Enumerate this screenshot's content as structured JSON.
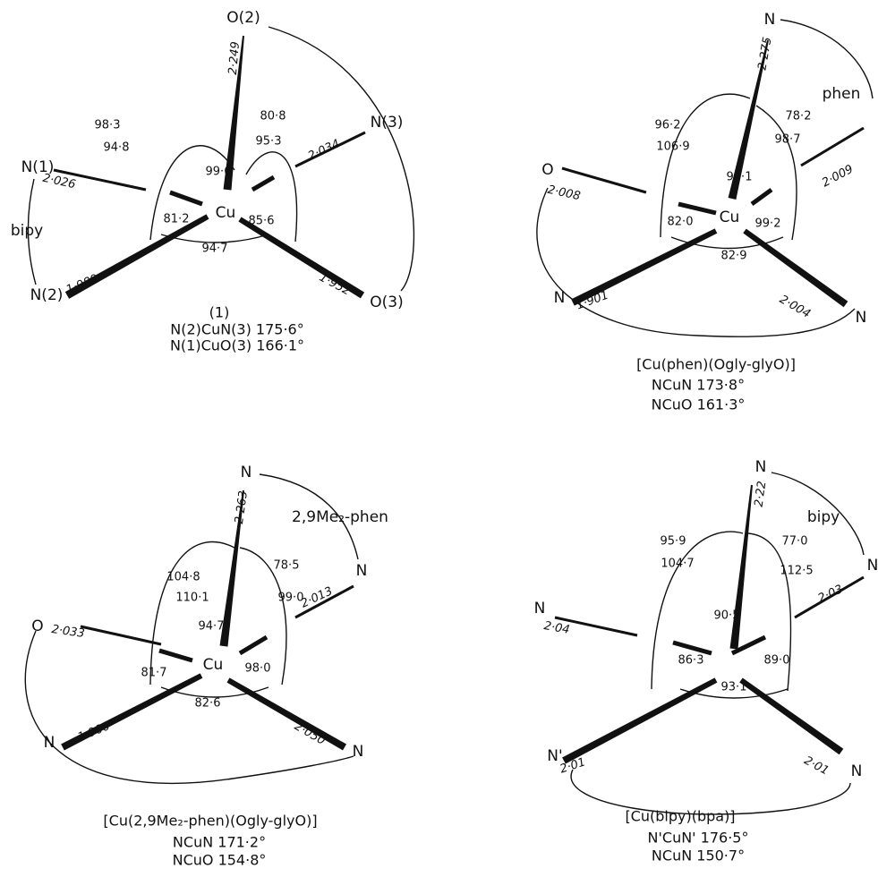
{
  "panels": [
    {
      "atoms": [
        "O(2)",
        "N(3)",
        "N(1)",
        "N(2)",
        "O(3)",
        "Cu"
      ],
      "bond_lengths": [
        "2·249",
        "2·034",
        "2·026",
        "1·989",
        "1·952"
      ],
      "angles": [
        "98·3",
        "94·8",
        "80·8",
        "95·3",
        "99·6",
        "81·2",
        "85·6",
        "94·7"
      ],
      "ligand": "bipy",
      "caption": [
        "(1)",
        "N(2)CuN(3) 175·6°",
        "N(1)CuO(3) 166·1°"
      ]
    },
    {
      "atoms": [
        "N",
        "O",
        "N",
        "N",
        "Cu"
      ],
      "bond_lengths": [
        "2·275",
        "2·009",
        "2·008",
        "1·901",
        "2·004"
      ],
      "angles": [
        "96·2",
        "106·9",
        "78·2",
        "98·7",
        "94·1",
        "82·0",
        "99·2",
        "82·9"
      ],
      "ligand": "phen",
      "caption": [
        "[Cu(phen)(Ogly-glyO)]",
        "NCuN 173·8°",
        "NCuO 161·3°"
      ]
    },
    {
      "atoms": [
        "N",
        "N",
        "O",
        "N",
        "N",
        "Cu"
      ],
      "bond_lengths": [
        "2·263",
        "2·013",
        "2·033",
        "1·900",
        "2·050"
      ],
      "angles": [
        "104·8",
        "110·1",
        "78·5",
        "99·0",
        "94·7",
        "81·7",
        "98·0",
        "82·6"
      ],
      "ligand": "2,9Me₂-phen",
      "caption": [
        "[Cu(2,9Me₂-phen)(Ogly-glyO)]",
        "NCuN 171·2°",
        "NCuO 154·8°"
      ]
    },
    {
      "atoms": [
        "N",
        "N",
        "N",
        "N'",
        "N"
      ],
      "bond_lengths": [
        "2·22",
        "2·03",
        "2·04",
        "2·01",
        "2·01"
      ],
      "angles": [
        "95·9",
        "104·7",
        "77·0",
        "112·5",
        "90·5",
        "86·3",
        "89·0",
        "93·1"
      ],
      "ligand": "bipy",
      "caption": [
        "[Cu(bipy)(bpa)]",
        "N'CuN' 176·5°",
        "NCuN 150·7°"
      ]
    }
  ]
}
